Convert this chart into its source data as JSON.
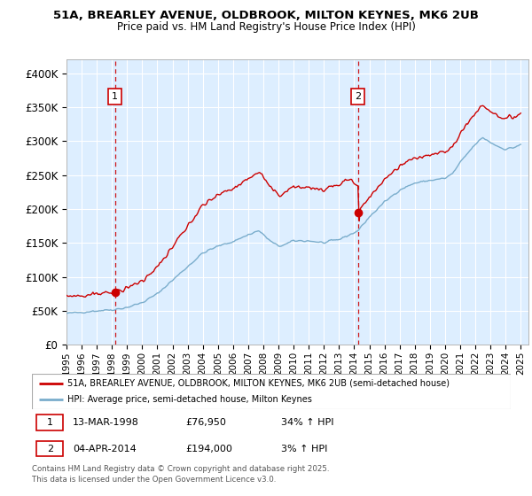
{
  "title1": "51A, BREARLEY AVENUE, OLDBROOK, MILTON KEYNES, MK6 2UB",
  "title2": "Price paid vs. HM Land Registry's House Price Index (HPI)",
  "xlim_start": 1995.0,
  "xlim_end": 2025.5,
  "ylim_min": 0,
  "ylim_max": 420000,
  "yticks": [
    0,
    50000,
    100000,
    150000,
    200000,
    250000,
    300000,
    350000,
    400000
  ],
  "ytick_labels": [
    "£0",
    "£50K",
    "£100K",
    "£150K",
    "£200K",
    "£250K",
    "£300K",
    "£350K",
    "£400K"
  ],
  "sale1_x": 1998.2,
  "sale1_y": 76950,
  "sale1_label": "1",
  "sale2_x": 2014.25,
  "sale2_y": 194000,
  "sale2_label": "2",
  "legend_line1": "51A, BREARLEY AVENUE, OLDBROOK, MILTON KEYNES, MK6 2UB (semi-detached house)",
  "legend_line2": "HPI: Average price, semi-detached house, Milton Keynes",
  "footer": "Contains HM Land Registry data © Crown copyright and database right 2025.\nThis data is licensed under the Open Government Licence v3.0.",
  "line_color_red": "#cc0000",
  "line_color_blue": "#7aadcc",
  "bg_color": "#ddeeff",
  "grid_color": "#ffffff",
  "xticks": [
    1995,
    1996,
    1997,
    1998,
    1999,
    2000,
    2001,
    2002,
    2003,
    2004,
    2005,
    2006,
    2007,
    2008,
    2009,
    2010,
    2011,
    2012,
    2013,
    2014,
    2015,
    2016,
    2017,
    2018,
    2019,
    2020,
    2021,
    2022,
    2023,
    2024,
    2025
  ]
}
